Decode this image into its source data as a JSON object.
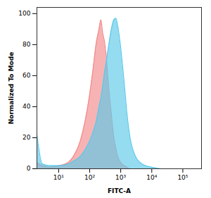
{
  "chart_data": {
    "type": "area",
    "x_label": "FITC-A",
    "y_label": "Normalized To Mode",
    "log": "x",
    "x": [
      2,
      3,
      5,
      10,
      20,
      30,
      50,
      70,
      100,
      130,
      160,
      200,
      230,
      260,
      300,
      350,
      400,
      500,
      600,
      700,
      800,
      1000,
      1300,
      1600,
      2000,
      3000,
      5000,
      10000,
      20000
    ],
    "series": [
      {
        "color": "#f28b8b",
        "values": [
          4,
          2,
          1,
          2,
          4,
          8,
          18,
          30,
          48,
          65,
          80,
          90,
          96,
          88,
          82,
          70,
          55,
          35,
          20,
          13,
          8,
          4,
          2,
          1,
          0,
          0,
          0,
          0,
          0
        ]
      },
      {
        "color": "#5cc9ea",
        "values": [
          22,
          3,
          2,
          2,
          3,
          5,
          8,
          12,
          18,
          24,
          30,
          40,
          46,
          53,
          62,
          70,
          78,
          90,
          96,
          97,
          92,
          78,
          55,
          35,
          20,
          8,
          3,
          1,
          0
        ]
      }
    ],
    "xlim": [
      2,
      400000
    ],
    "xticks": [
      {
        "value": 10,
        "label": "10¹"
      },
      {
        "value": 100,
        "label": "10²"
      },
      {
        "value": 1000,
        "label": "10³"
      },
      {
        "value": 10000,
        "label": "10⁴"
      },
      {
        "value": 100000,
        "label": "10⁵"
      }
    ],
    "ylim": [
      0,
      104
    ],
    "yticks": [
      0,
      20,
      40,
      60,
      80,
      100
    ],
    "grid": false
  }
}
